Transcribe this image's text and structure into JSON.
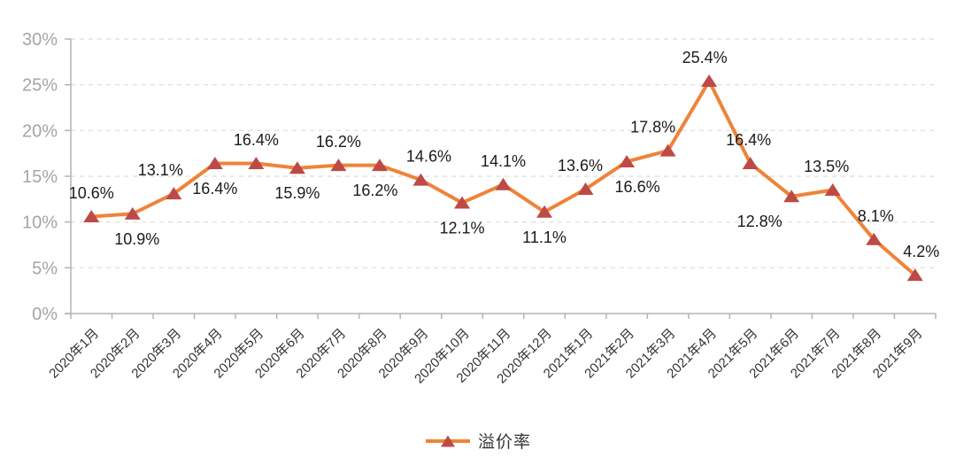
{
  "chart_data": {
    "type": "line",
    "title": "",
    "xlabel": "",
    "ylabel": "",
    "categories": [
      "2020年1月",
      "2020年2月",
      "2020年3月",
      "2020年4月",
      "2020年5月",
      "2020年6月",
      "2020年7月",
      "2020年8月",
      "2020年9月",
      "2020年10月",
      "2020年11月",
      "2020年12月",
      "2021年1月",
      "2021年2月",
      "2021年3月",
      "2021年4月",
      "2021年5月",
      "2021年6月",
      "2021年7月",
      "2021年8月",
      "2021年9月"
    ],
    "series": [
      {
        "name": "溢价率",
        "values": [
          10.6,
          10.9,
          13.1,
          16.4,
          16.4,
          15.9,
          16.2,
          16.2,
          14.6,
          12.1,
          14.1,
          11.1,
          13.6,
          16.6,
          17.8,
          25.4,
          16.4,
          12.8,
          13.5,
          8.1,
          4.2
        ]
      }
    ],
    "data_labels": [
      "10.6%",
      "10.9%",
      "13.1%",
      "16.4%",
      "16.4%",
      "15.9%",
      "16.2%",
      "16.2%",
      "14.6%",
      "12.1%",
      "14.1%",
      "11.1%",
      "13.6%",
      "16.6%",
      "17.8%",
      "25.4%",
      "16.4%",
      "12.8%",
      "13.5%",
      "8.1%",
      "4.2%"
    ],
    "label_sides": [
      "above",
      "below",
      "above",
      "below",
      "above",
      "below",
      "above",
      "below",
      "above",
      "below",
      "above",
      "below",
      "above",
      "below",
      "above",
      "above",
      "above",
      "below",
      "above",
      "above",
      "above"
    ],
    "label_dx": [
      0,
      5,
      -15,
      0,
      0,
      0,
      0,
      -5,
      9,
      0,
      0,
      0,
      -6,
      12,
      -17,
      -5,
      -2,
      -36,
      -7,
      2,
      7
    ],
    "ylim": [
      0,
      30
    ],
    "y_tick_labels": [
      "0%",
      "5%",
      "10%",
      "15%",
      "20%",
      "25%",
      "30%"
    ],
    "grid": "horizontal-dashed",
    "marker": "triangle",
    "legend": {
      "label": "溢价率",
      "position": "bottom-center"
    },
    "colors": {
      "line": "#EF8338",
      "marker": "#BD4A46",
      "data_label": "#1A1A1A",
      "y_axis_label": "#A5A5A5",
      "x_axis_label": "#333333",
      "gridline": "#E2E2E2",
      "axis": "#B3B3B3",
      "legend_text": "#333333",
      "background": "#FFFFFF"
    }
  }
}
